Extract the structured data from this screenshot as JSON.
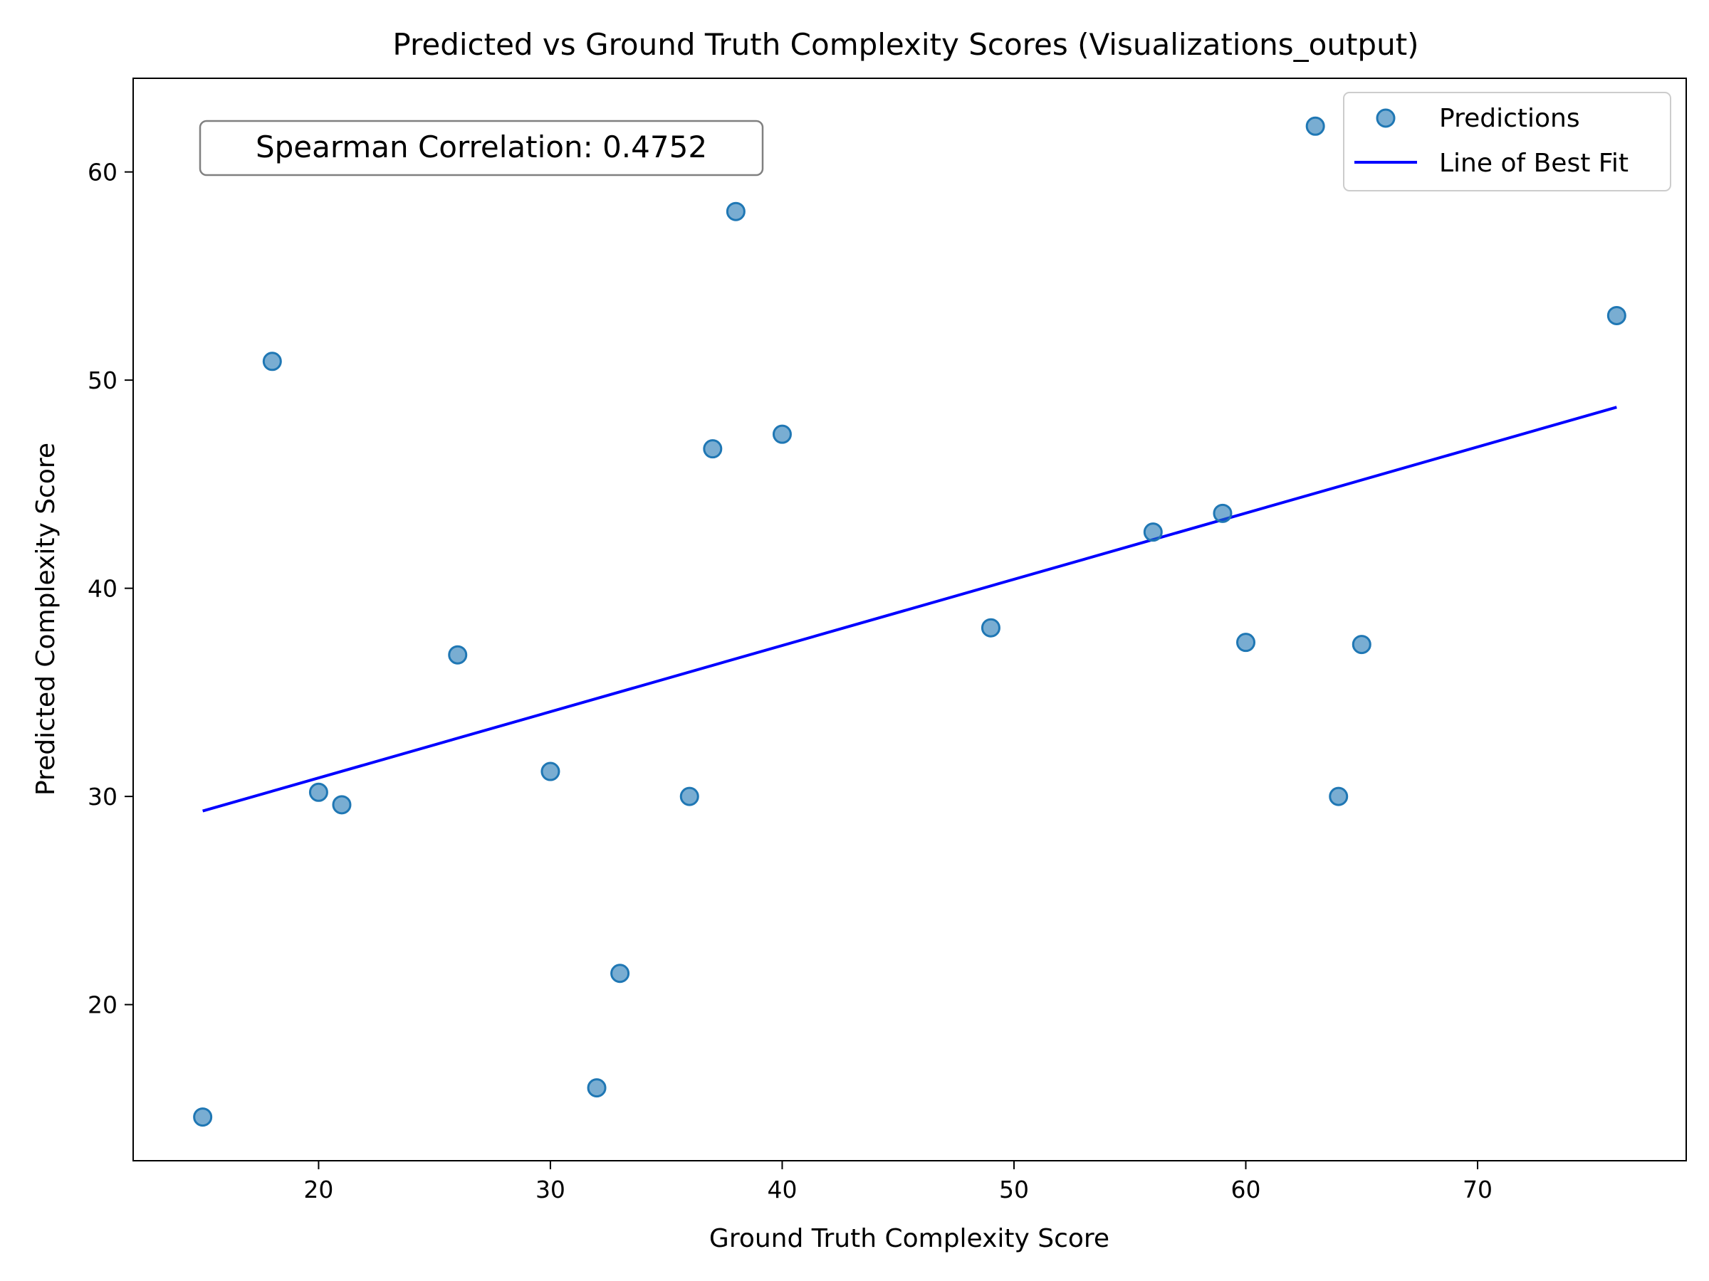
{
  "chart_data": {
    "type": "scatter",
    "title": "Predicted vs Ground Truth Complexity Scores (Visualizations_output)",
    "xlabel": "Ground Truth Complexity Score",
    "ylabel": "Predicted Complexity Score",
    "xlim": [
      12,
      79
    ],
    "ylim": [
      12.5,
      64.5
    ],
    "xticks": [
      20,
      30,
      40,
      50,
      60,
      70
    ],
    "yticks": [
      20,
      30,
      40,
      50,
      60
    ],
    "grid": false,
    "legend_position": "top-right",
    "annotation": "Spearman Correlation: 0.4752",
    "colors": {
      "points": "#1f77b4",
      "line": "#0000ff"
    },
    "series": [
      {
        "name": "Predictions",
        "kind": "scatter",
        "points": [
          {
            "x": 15,
            "y": 14.6
          },
          {
            "x": 18,
            "y": 50.9
          },
          {
            "x": 20,
            "y": 30.2
          },
          {
            "x": 21,
            "y": 29.6
          },
          {
            "x": 26,
            "y": 36.8
          },
          {
            "x": 30,
            "y": 31.2
          },
          {
            "x": 32,
            "y": 16.0
          },
          {
            "x": 33,
            "y": 21.5
          },
          {
            "x": 36,
            "y": 30.0
          },
          {
            "x": 37,
            "y": 46.7
          },
          {
            "x": 38,
            "y": 58.1
          },
          {
            "x": 40,
            "y": 47.4
          },
          {
            "x": 49,
            "y": 38.1
          },
          {
            "x": 56,
            "y": 42.7
          },
          {
            "x": 59,
            "y": 43.6
          },
          {
            "x": 60,
            "y": 37.4
          },
          {
            "x": 63,
            "y": 62.2
          },
          {
            "x": 64,
            "y": 30.0
          },
          {
            "x": 65,
            "y": 37.3
          },
          {
            "x": 76,
            "y": 53.1
          }
        ]
      },
      {
        "name": "Line of Best Fit",
        "kind": "line",
        "points": [
          {
            "x": 15,
            "y": 29.3
          },
          {
            "x": 76,
            "y": 48.7
          }
        ]
      }
    ]
  }
}
